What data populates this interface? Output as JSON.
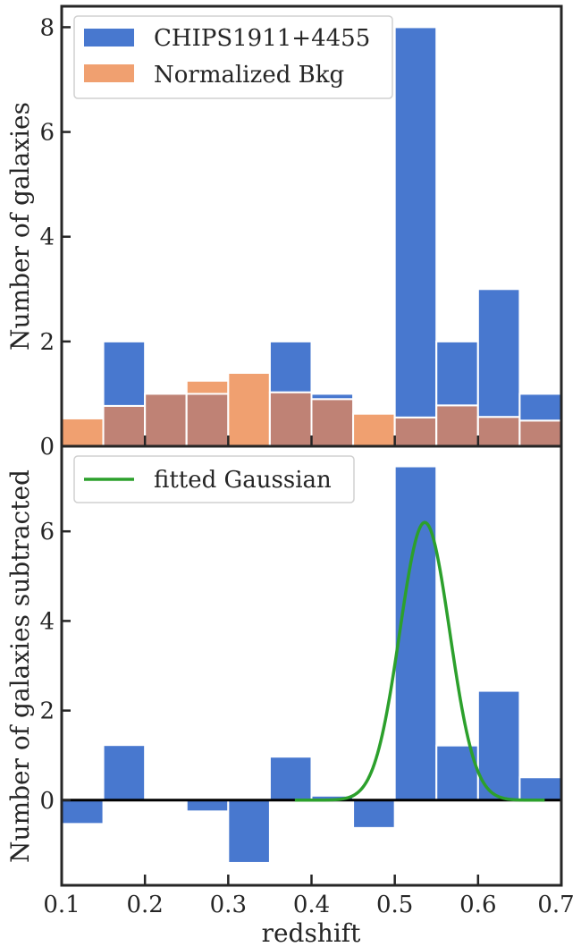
{
  "chart_data": [
    {
      "panel": "top",
      "type": "bar",
      "ylabel": "Number of galaxies",
      "xlim": [
        0.1,
        0.7
      ],
      "ylim": [
        0,
        8.4
      ],
      "x_ticks": [
        0.1,
        0.2,
        0.3,
        0.4,
        0.5,
        0.6,
        0.7
      ],
      "y_ticks": [
        0,
        2,
        4,
        6,
        8
      ],
      "y_tick_labels": [
        "0",
        "2",
        "4",
        "6",
        "8"
      ],
      "bin_edges": [
        0.1,
        0.15,
        0.2,
        0.25,
        0.3,
        0.35,
        0.4,
        0.45,
        0.5,
        0.55,
        0.6,
        0.65,
        0.7
      ],
      "legend_position": "top-left",
      "series": [
        {
          "name": "CHIPS1911+4455",
          "color": "#4878cf",
          "values": [
            0,
            2,
            1,
            1,
            0,
            2,
            1,
            0,
            8,
            2,
            3,
            1
          ]
        },
        {
          "name": "Normalized Bkg",
          "color": "#f0a070",
          "overlap_color": "#bf8275",
          "values": [
            0.53,
            0.77,
            1.0,
            1.25,
            1.4,
            1.03,
            0.9,
            0.62,
            0.55,
            0.78,
            0.56,
            0.49
          ]
        }
      ]
    },
    {
      "panel": "bottom",
      "type": "bar",
      "ylabel": "Number of galaxies subtracted",
      "xlabel": "redshift",
      "xlim": [
        0.1,
        0.7
      ],
      "ylim": [
        -1.9,
        7.9
      ],
      "x_ticks": [
        0.1,
        0.2,
        0.3,
        0.4,
        0.5,
        0.6,
        0.7
      ],
      "x_tick_labels": [
        "0.1",
        "0.2",
        "0.3",
        "0.4",
        "0.5",
        "0.6",
        "0.7"
      ],
      "y_ticks": [
        0,
        2,
        4,
        6
      ],
      "y_tick_labels": [
        "0",
        "2",
        "4",
        "6"
      ],
      "bin_edges": [
        0.1,
        0.15,
        0.2,
        0.25,
        0.3,
        0.35,
        0.4,
        0.45,
        0.5,
        0.55,
        0.6,
        0.65,
        0.7
      ],
      "legend_position": "top-left",
      "series": [
        {
          "name": "",
          "color": "#4878cf",
          "values": [
            -0.53,
            1.23,
            0,
            -0.25,
            -1.4,
            0.97,
            0.1,
            -0.62,
            7.45,
            1.22,
            2.44,
            0.51
          ]
        }
      ],
      "gaussian": {
        "name": "fitted Gaussian",
        "color": "#2ca02c",
        "amplitude": 6.2,
        "mean": 0.536,
        "sigma": 0.03,
        "x_range": [
          0.38,
          0.68
        ]
      },
      "zero_line": 0
    }
  ]
}
